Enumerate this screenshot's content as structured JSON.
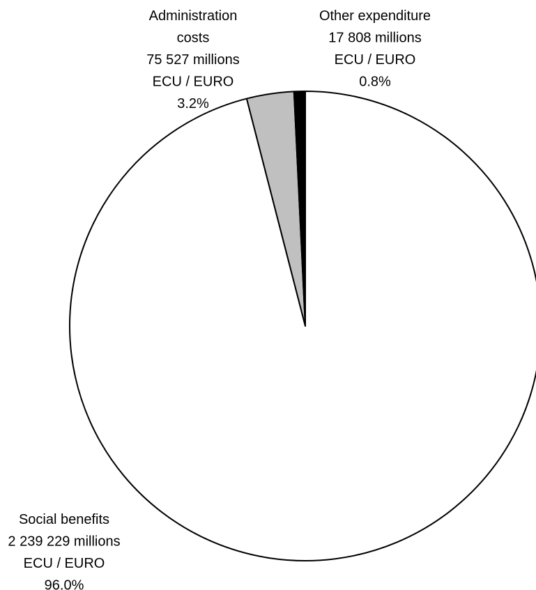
{
  "chart_data": {
    "type": "pie",
    "start_angle": "top",
    "direction": "clockwise",
    "unit": "millions ECU / EURO",
    "slices": [
      {
        "name": "Social benefits",
        "value": 2239229,
        "percent_label": "96.0%",
        "value_label": "2 239 229 millions",
        "unit_label": "ECU / EURO",
        "color": "#ffffff"
      },
      {
        "name": "Administration costs",
        "name_lines": [
          "Administration",
          "costs"
        ],
        "value": 75527,
        "percent_label": "3.2%",
        "value_label": "75 527 millions",
        "unit_label": "ECU / EURO",
        "color": "#c0c0c0"
      },
      {
        "name": "Other expenditure",
        "value": 17808,
        "percent_label": "0.8%",
        "value_label": "17 808 millions",
        "unit_label": "ECU / EURO",
        "color": "#000000"
      }
    ]
  }
}
